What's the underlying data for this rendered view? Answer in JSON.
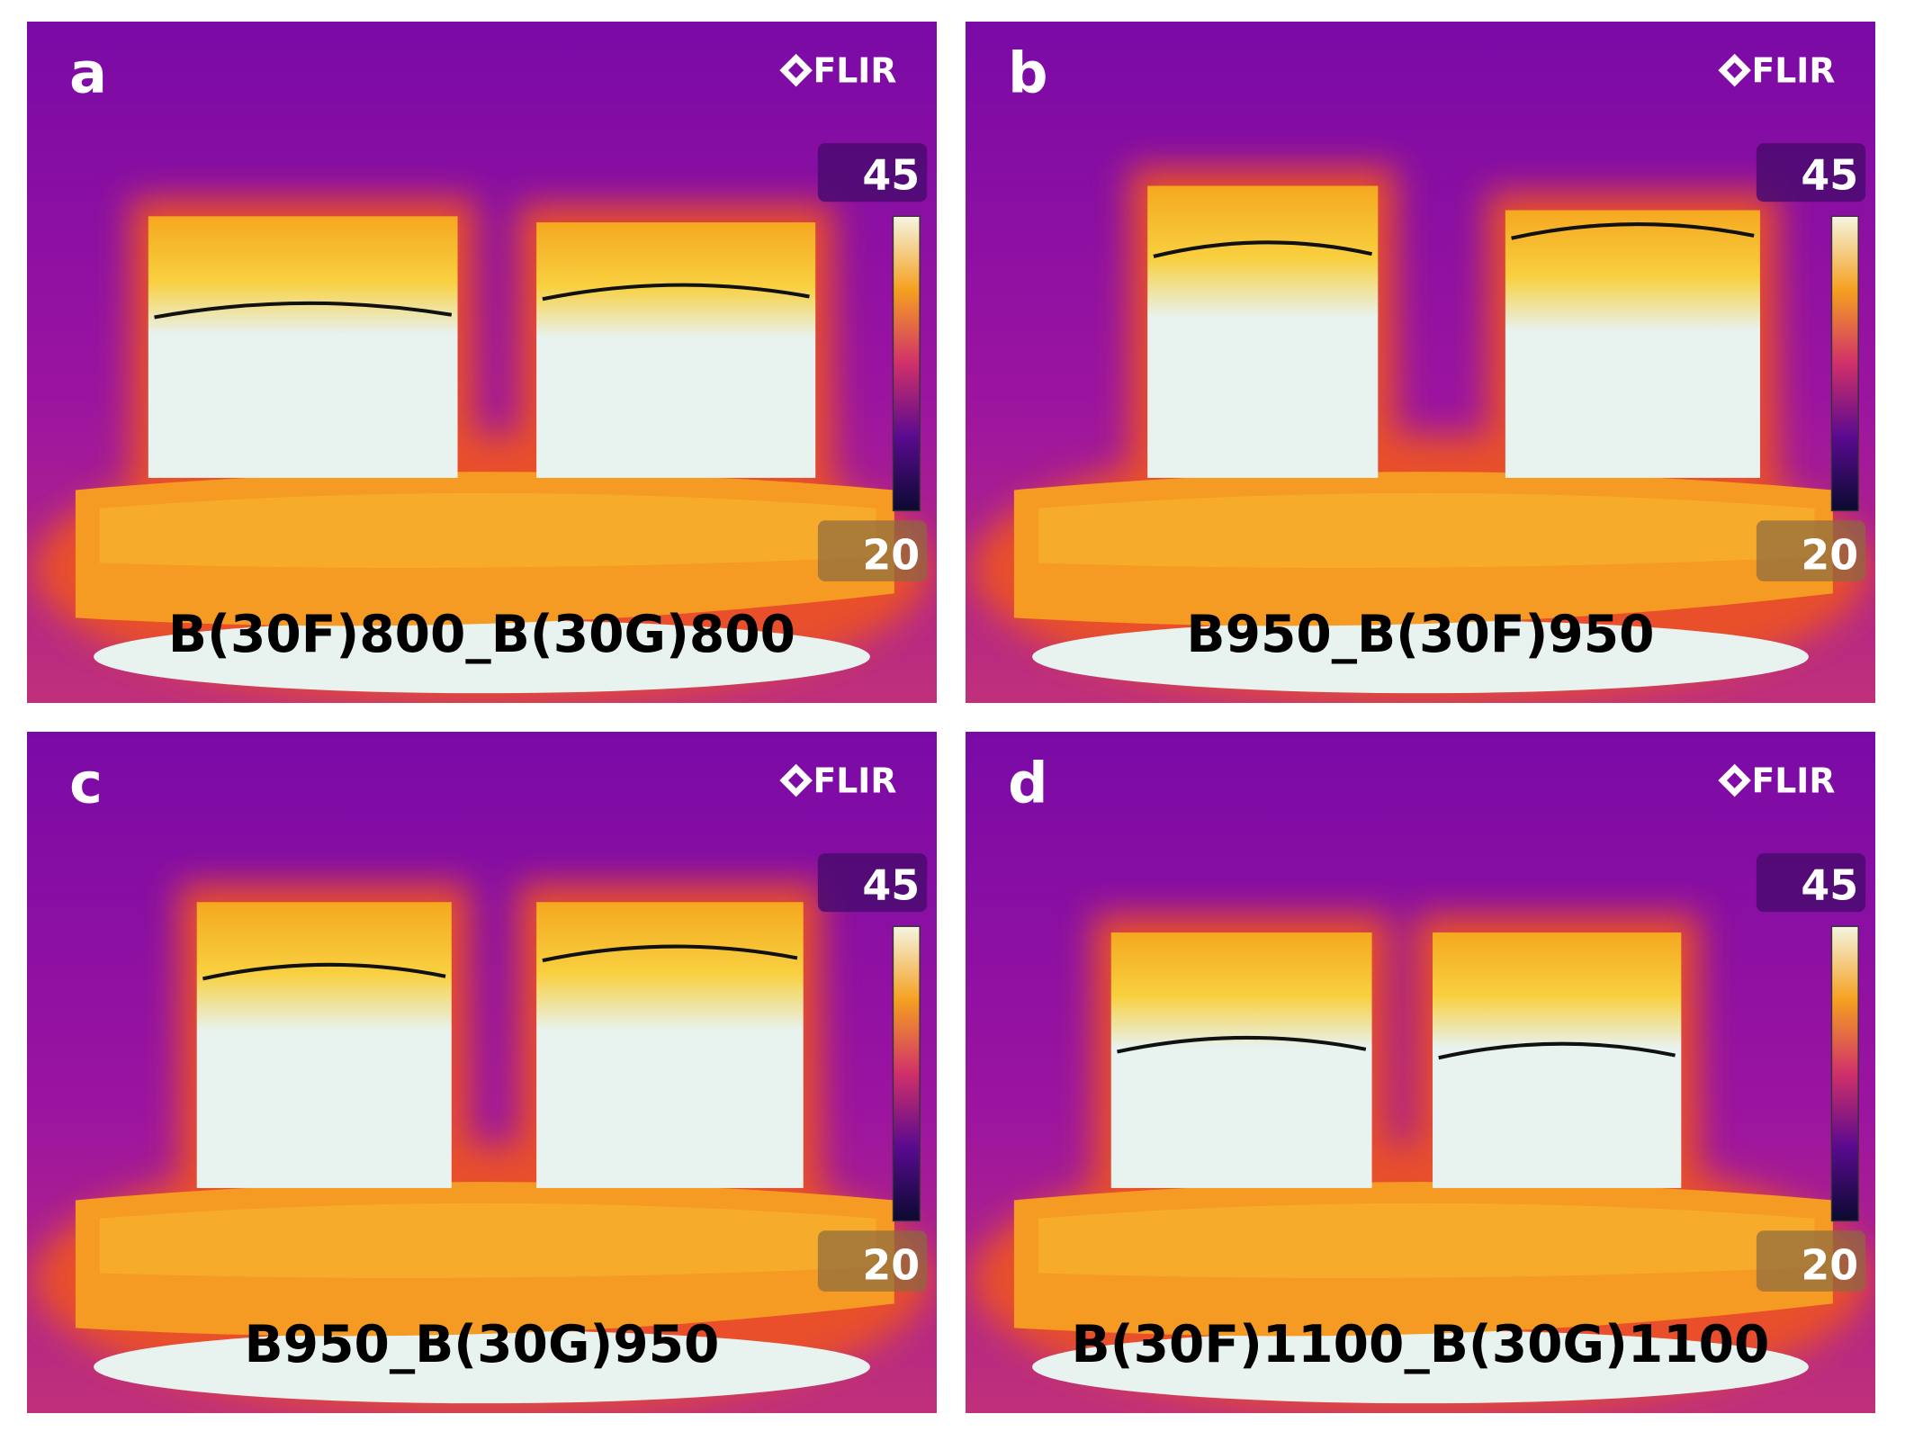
{
  "panels": [
    {
      "label": "a",
      "brand": "FLIR",
      "scale_max": "45",
      "scale_min": "20",
      "caption": "B(30F)800_B(30G)800"
    },
    {
      "label": "b",
      "brand": "FLIR",
      "scale_max": "45",
      "scale_min": "20",
      "caption": "B950_B(30F)950"
    },
    {
      "label": "c",
      "brand": "FLIR",
      "scale_max": "45",
      "scale_min": "20",
      "caption": "B950_B(30G)950"
    },
    {
      "label": "d",
      "brand": "FLIR",
      "scale_max": "45",
      "scale_min": "20",
      "caption": "B(30F)1100_B(30G)1100"
    }
  ]
}
